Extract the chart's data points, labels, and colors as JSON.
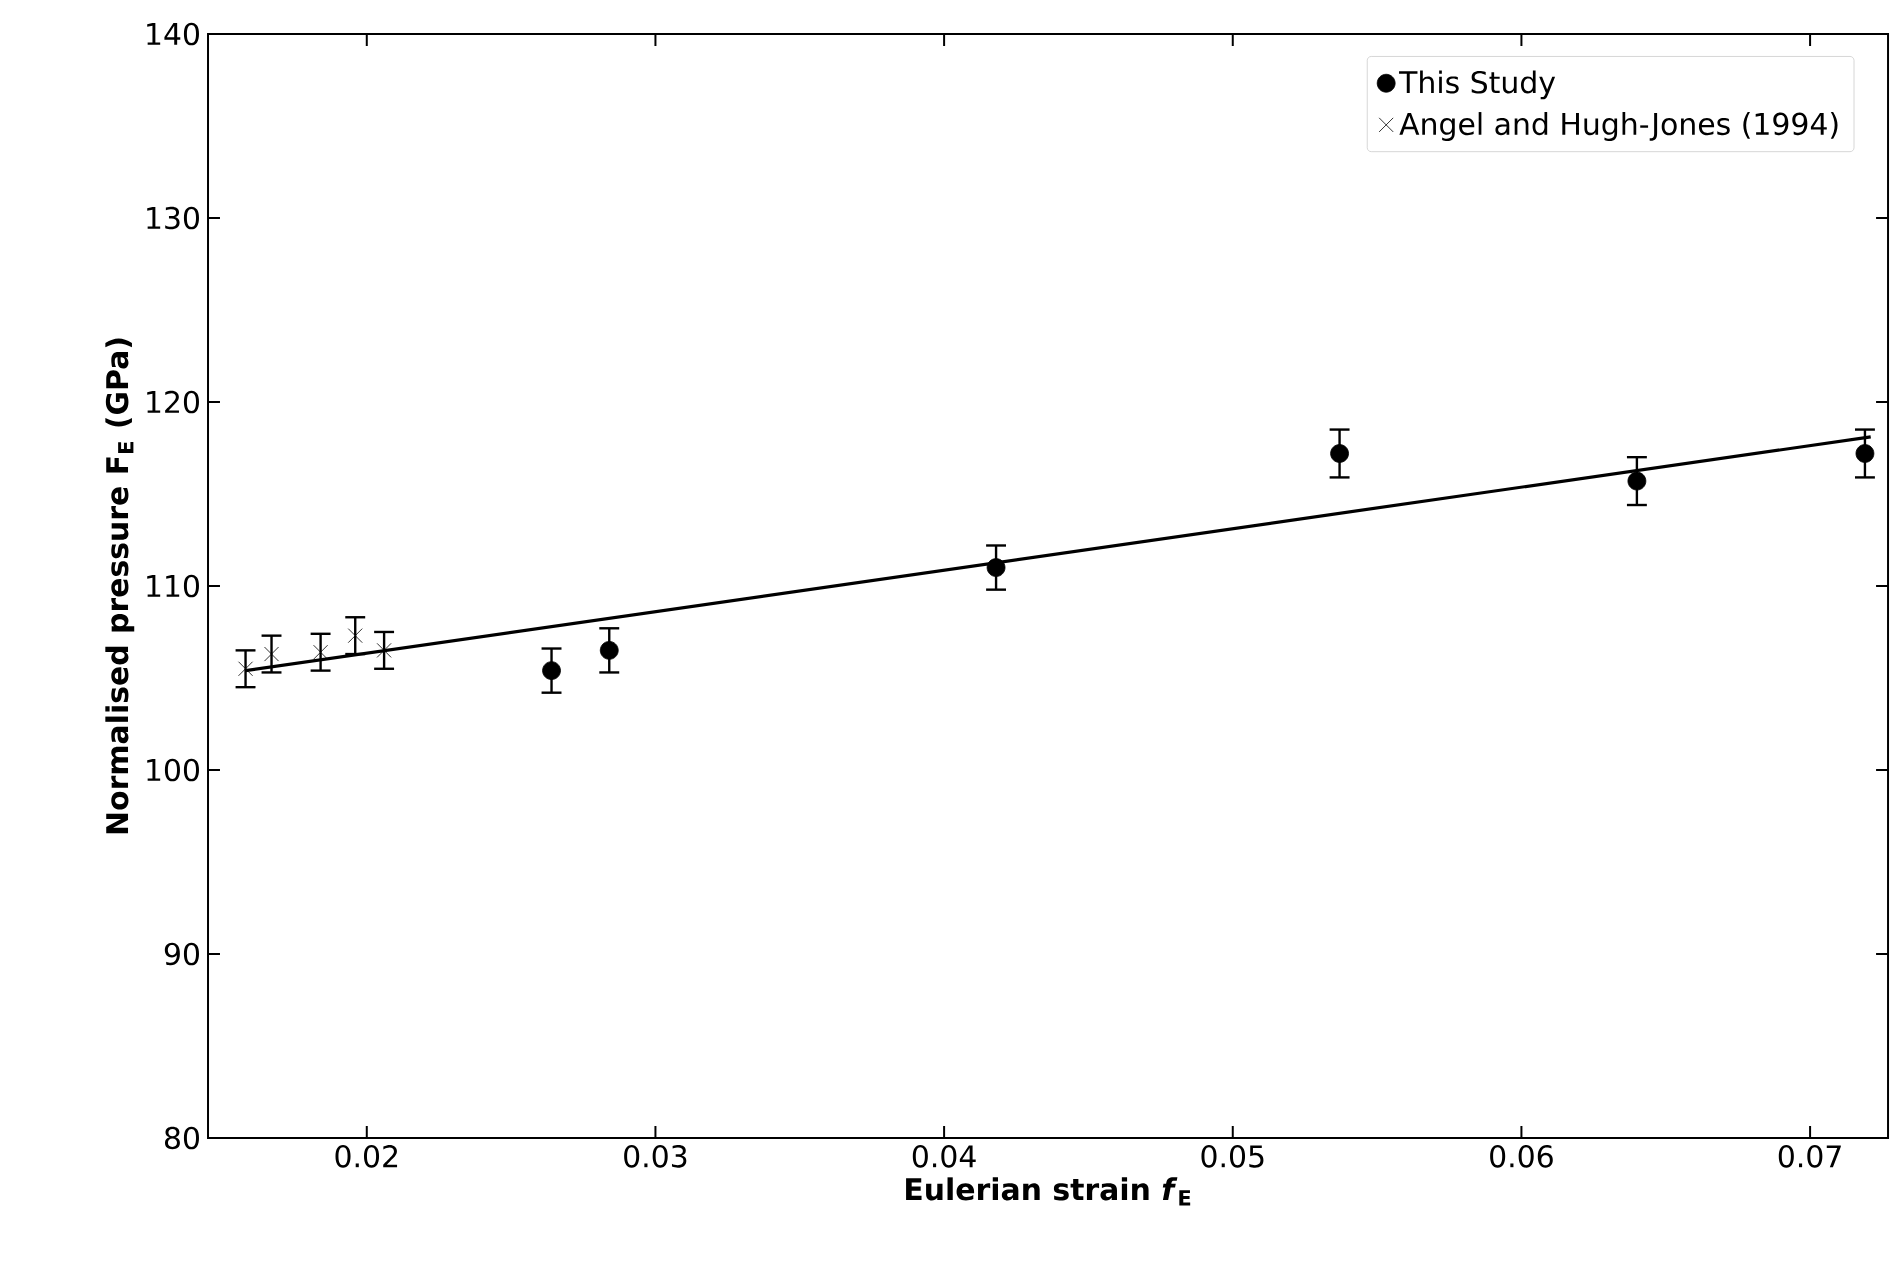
{
  "chart_data": {
    "type": "scatter",
    "xlabel": "Eulerian strain *f*$_{E}$",
    "ylabel": "Normalised pressure F$_{E}$ (GPa)",
    "xlim": [
      0.0145,
      0.0727
    ],
    "ylim": [
      80,
      140
    ],
    "xticks": [
      0.02,
      0.03,
      0.04,
      0.05,
      0.06,
      0.07
    ],
    "yticks": [
      80,
      90,
      100,
      110,
      120,
      130,
      140
    ],
    "grid": false,
    "legend": "top right",
    "series": [
      {
        "name": "This Study",
        "color": "#000000",
        "marker": "circle",
        "x": [
          0.0264,
          0.0284,
          0.0418,
          0.0537,
          0.064,
          0.0719
        ],
        "values": [
          105.4,
          106.5,
          111.0,
          117.2,
          115.7,
          117.2
        ],
        "errors": [
          1.2,
          1.2,
          1.2,
          1.3,
          1.3,
          1.3
        ]
      },
      {
        "name": "Angel and Hugh-Jones (1994)",
        "color": "#000000",
        "marker": "cross",
        "x": [
          0.0158,
          0.0167,
          0.0184,
          0.0196,
          0.0206
        ],
        "values": [
          105.5,
          106.3,
          106.4,
          107.3,
          106.5
        ],
        "errors": [
          1.0,
          1.0,
          1.0,
          1.0,
          1.0
        ]
      },
      {
        "type": "line",
        "color": "#000000",
        "marker": "none",
        "line_style": "solid",
        "x": [
          0.0158,
          0.0721
        ],
        "values": [
          105.4,
          118.1
        ]
      }
    ]
  }
}
